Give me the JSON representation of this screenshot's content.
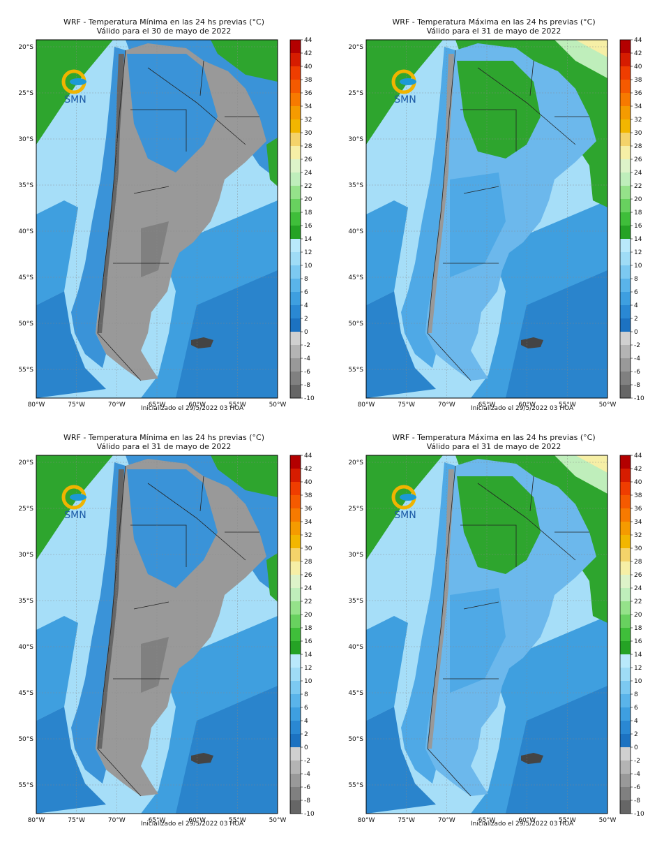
{
  "panels": [
    {
      "title_line1": "WRF - Temperatura Mínima en las 24 hs previas (°C)",
      "title_line2": "Válido para el 30 de mayo de 2022",
      "variant": "min"
    },
    {
      "title_line1": "WRF - Temperatura Máxima en las 24 hs previas (°C)",
      "title_line2": "Válido para el 31 de mayo de 2022",
      "variant": "max"
    },
    {
      "title_line1": "WRF - Temperatura Mínima en las 24 hs previas (°C)",
      "title_line2": "Válido para el 31 de mayo de 2022",
      "variant": "min"
    },
    {
      "title_line1": "WRF - Temperatura Máxima en las 24 hs previas (°C)",
      "title_line2": "Válido para el 31 de mayo de 2022",
      "variant": "max"
    }
  ],
  "initialized_text": "Inicializado el 29/5/2022 03 HOA",
  "logo_text": "SMN",
  "lat_labels": [
    "20°S",
    "25°S",
    "30°S",
    "35°S",
    "40°S",
    "45°S",
    "50°S",
    "55°S"
  ],
  "lon_labels": [
    "80°W",
    "75°W",
    "70°W",
    "65°W",
    "60°W",
    "55°W",
    "50°W"
  ],
  "colorbar": {
    "labels": [
      "44",
      "42",
      "40",
      "38",
      "36",
      "34",
      "32",
      "30",
      "28",
      "26",
      "24",
      "22",
      "20",
      "18",
      "16",
      "14",
      "12",
      "10",
      "8",
      "6",
      "4",
      "2",
      "0",
      "-2",
      "-4",
      "-6",
      "-8",
      "-10"
    ],
    "colors": [
      "#b30000",
      "#d61c00",
      "#ef3d00",
      "#f55a00",
      "#f77a00",
      "#f59b00",
      "#f2b600",
      "#f4d36a",
      "#f6efa6",
      "#ddf3c9",
      "#bfeebb",
      "#95e28a",
      "#68d15f",
      "#3fbe3a",
      "#25a325",
      "#b9e9fb",
      "#9fdcf6",
      "#7cc9f1",
      "#5ab4ea",
      "#3e9fe0",
      "#2a88d3",
      "#1c72c1",
      "#d0d0d0",
      "#b4b4b4",
      "#999999",
      "#808080",
      "#666666"
    ]
  },
  "colors": {
    "land_green": "#2ea52e",
    "ocean_light": "#a6def8",
    "ocean_mid": "#3f9fdf",
    "ocean_deep": "#2a84cc",
    "land_gray": "#999999",
    "logo_ring": "#f0b400",
    "logo_fish": "#1c9ad6"
  }
}
